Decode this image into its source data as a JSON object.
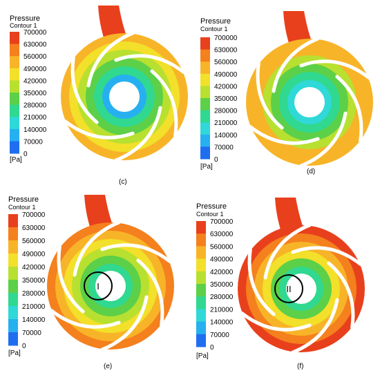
{
  "legend_scale": {
    "title": "Pressure",
    "subtitle": "Contour 1",
    "unit": "[Pa]",
    "ticks": [
      "700000",
      "630000",
      "560000",
      "490000",
      "420000",
      "350000",
      "280000",
      "210000",
      "140000",
      "70000",
      "0"
    ],
    "colors": [
      "#e8401c",
      "#f4801e",
      "#f8b428",
      "#f2e02a",
      "#b8e030",
      "#5cd048",
      "#30d890",
      "#30d8d8",
      "#26b0f0",
      "#1f6ef0",
      "#1c3ce0"
    ]
  },
  "panels": [
    {
      "id": "c",
      "caption": "(c)",
      "level": 0.72,
      "marker": ""
    },
    {
      "id": "d",
      "caption": "(d)",
      "level": 0.76,
      "marker": ""
    },
    {
      "id": "e",
      "caption": "(e)",
      "level": 0.84,
      "marker": "I"
    },
    {
      "id": "f",
      "caption": "(f)",
      "level": 0.9,
      "marker": "II"
    }
  ]
}
